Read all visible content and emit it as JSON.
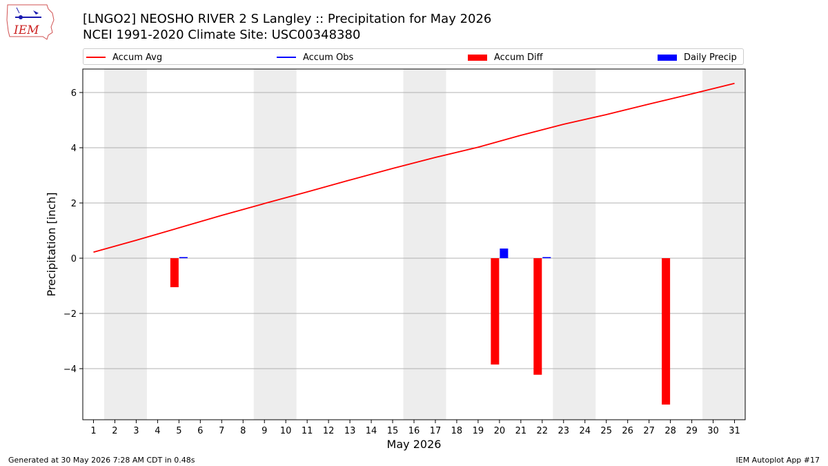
{
  "header": {
    "title_line1": "[LNGO2] NEOSHO RIVER 2 S Langley :: Precipitation for May 2026",
    "title_line2": "NCEI 1991-2020 Climate Site: USC00348380",
    "logo_text": "IEM"
  },
  "footer": {
    "left": "Generated at 30 May 2026 7:28 AM CDT in 0.48s",
    "right": "IEM Autoplot App #17"
  },
  "chart_data": {
    "type": "bar",
    "xlabel": "May 2026",
    "ylabel": "Precipitation [inch]",
    "xlim": [
      0.5,
      31.5
    ],
    "ylim": [
      -5.85,
      6.85
    ],
    "x_ticks": [
      1,
      2,
      3,
      4,
      5,
      6,
      7,
      8,
      9,
      10,
      11,
      12,
      13,
      14,
      15,
      16,
      17,
      18,
      19,
      20,
      21,
      22,
      23,
      24,
      25,
      26,
      27,
      28,
      29,
      30,
      31
    ],
    "y_ticks": [
      -4,
      -2,
      0,
      2,
      4,
      6
    ],
    "grid": "horizontal",
    "legend_placement": "top",
    "weekend_shading": [
      [
        2,
        3
      ],
      [
        9,
        10
      ],
      [
        16,
        17
      ],
      [
        23,
        24
      ],
      [
        30,
        31
      ]
    ],
    "legend": [
      {
        "label": "Accum Avg",
        "color": "#ff0000",
        "kind": "line"
      },
      {
        "label": "Accum Obs",
        "color": "#0000ff",
        "kind": "line"
      },
      {
        "label": "Accum Diff",
        "color": "#ff0000",
        "kind": "bar"
      },
      {
        "label": "Daily Precip",
        "color": "#0000ff",
        "kind": "bar"
      }
    ],
    "series": [
      {
        "name": "Accum Avg",
        "type": "line",
        "color": "#ff0000",
        "x": [
          1,
          3,
          5,
          7,
          9,
          11,
          13,
          15,
          17,
          19,
          21,
          23,
          25,
          27,
          29,
          31
        ],
        "values": [
          0.22,
          0.65,
          1.1,
          1.55,
          1.98,
          2.4,
          2.83,
          3.25,
          3.65,
          4.02,
          4.45,
          4.85,
          5.2,
          5.58,
          5.95,
          6.33
        ]
      },
      {
        "name": "Accum Diff",
        "type": "bar",
        "color": "#ff0000",
        "x": [
          5,
          20,
          22,
          28
        ],
        "values": [
          -1.05,
          -3.85,
          -4.22,
          -5.3
        ]
      },
      {
        "name": "Daily Precip",
        "type": "bar",
        "color": "#0000ff",
        "x": [
          5,
          20,
          22
        ],
        "values": [
          0.04,
          0.35,
          0.04
        ]
      }
    ]
  }
}
